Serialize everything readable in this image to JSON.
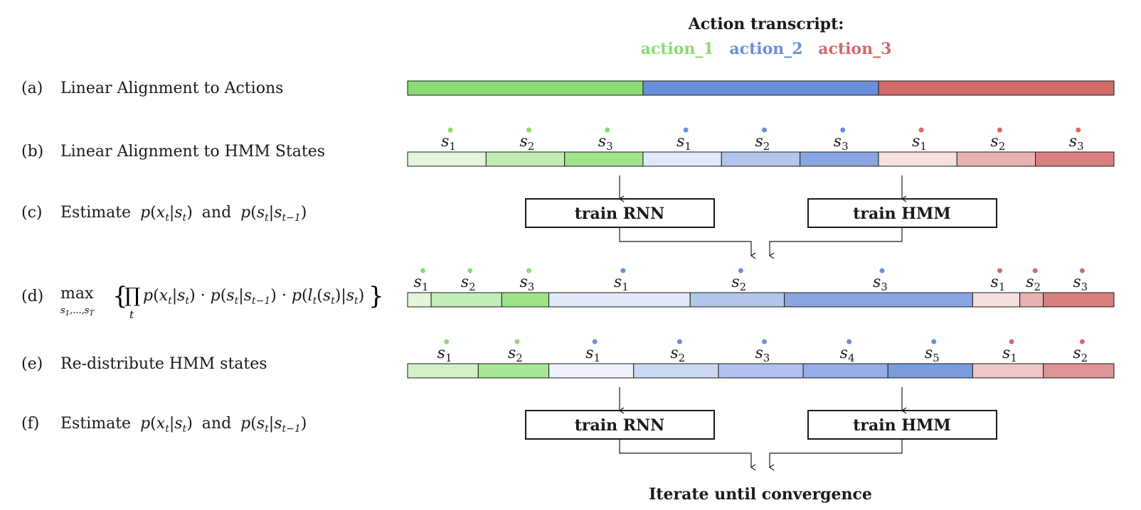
{
  "header": {
    "title": "Action transcript:",
    "actions": [
      {
        "label": "action_1",
        "color": "#8adc73"
      },
      {
        "label": "action_2",
        "color": "#6b8fdb"
      },
      {
        "label": "action_3",
        "color": "#d36a6a"
      }
    ]
  },
  "steps": [
    {
      "key": "(a)",
      "text": "Linear Alignment to Actions"
    },
    {
      "key": "(b)",
      "text": "Linear Alignment to HMM States"
    },
    {
      "key": "(c)",
      "text_prefix": "Estimate",
      "formula1": "p(xt|st)",
      "mid": "and",
      "formula2": "p(st|st−1)"
    },
    {
      "key": "(d)",
      "formula": "max s1,...,sT { ∏t p(xt|st) · p(st|st−1) · p(lt(st)|st) }"
    },
    {
      "key": "(e)",
      "text": "Re-distribute HMM states"
    },
    {
      "key": "(f)",
      "text_prefix": "Estimate",
      "formula1": "p(xt|st)",
      "mid": "and",
      "formula2": "p(st|st−1)"
    }
  ],
  "boxes": {
    "rnn": "train RNN",
    "hmm": "train HMM"
  },
  "footer": "Iterate until convergence",
  "rows": {
    "a": [
      {
        "action": 0,
        "color": "#8adc73",
        "frac": 0.3333
      },
      {
        "action": 1,
        "color": "#6b8fdb",
        "frac": 0.3333
      },
      {
        "action": 2,
        "color": "#d36a6a",
        "frac": 0.3334
      }
    ],
    "b": [
      {
        "state": "s",
        "sub": "1",
        "action": 0,
        "color": "#e3f6dd",
        "frac": 0.1111
      },
      {
        "state": "s",
        "sub": "2",
        "action": 0,
        "color": "#c2edb6",
        "frac": 0.1111
      },
      {
        "state": "s",
        "sub": "3",
        "action": 0,
        "color": "#9fe38a",
        "frac": 0.1111
      },
      {
        "state": "s",
        "sub": "1",
        "action": 1,
        "color": "#e2e8f8",
        "frac": 0.1111
      },
      {
        "state": "s",
        "sub": "2",
        "action": 1,
        "color": "#b4c5ec",
        "frac": 0.1111
      },
      {
        "state": "s",
        "sub": "3",
        "action": 1,
        "color": "#89a6e2",
        "frac": 0.1111
      },
      {
        "state": "s",
        "sub": "1",
        "action": 2,
        "color": "#f6dfdf",
        "frac": 0.1111
      },
      {
        "state": "s",
        "sub": "2",
        "action": 2,
        "color": "#e7b2b2",
        "frac": 0.1111
      },
      {
        "state": "s",
        "sub": "3",
        "action": 2,
        "color": "#d88080",
        "frac": 0.1112
      }
    ],
    "d": [
      {
        "state": "s",
        "sub": "1",
        "action": 0,
        "color": "#e3f6dd",
        "frac": 0.0333
      },
      {
        "state": "s",
        "sub": "2",
        "action": 0,
        "color": "#c2edb6",
        "frac": 0.1
      },
      {
        "state": "s",
        "sub": "3",
        "action": 0,
        "color": "#9fe38a",
        "frac": 0.0667
      },
      {
        "state": "s",
        "sub": "1",
        "action": 1,
        "color": "#e2e8f8",
        "frac": 0.2
      },
      {
        "state": "s",
        "sub": "2",
        "action": 1,
        "color": "#b4c5ec",
        "frac": 0.1333
      },
      {
        "state": "s",
        "sub": "3",
        "action": 1,
        "color": "#89a6e2",
        "frac": 0.2667
      },
      {
        "state": "s",
        "sub": "1",
        "action": 2,
        "color": "#f6dfdf",
        "frac": 0.0667
      },
      {
        "state": "s",
        "sub": "2",
        "action": 2,
        "color": "#e7b2b2",
        "frac": 0.0333
      },
      {
        "state": "s",
        "sub": "3",
        "action": 2,
        "color": "#d88080",
        "frac": 0.1
      }
    ],
    "e": [
      {
        "state": "s",
        "sub": "1",
        "action": 0,
        "color": "#d2f1c8",
        "frac": 0.1
      },
      {
        "state": "s",
        "sub": "2",
        "action": 0,
        "color": "#a8e596",
        "frac": 0.1
      },
      {
        "state": "s",
        "sub": "1",
        "action": 1,
        "color": "#edf1fb",
        "frac": 0.12
      },
      {
        "state": "s",
        "sub": "2",
        "action": 1,
        "color": "#ccd8f3",
        "frac": 0.12
      },
      {
        "state": "s",
        "sub": "3",
        "action": 1,
        "color": "#b0c2eb",
        "frac": 0.12
      },
      {
        "state": "s",
        "sub": "4",
        "action": 1,
        "color": "#94ade4",
        "frac": 0.12
      },
      {
        "state": "s",
        "sub": "5",
        "action": 1,
        "color": "#7a9bdd",
        "frac": 0.12
      },
      {
        "state": "s",
        "sub": "1",
        "action": 2,
        "color": "#efc6c6",
        "frac": 0.1
      },
      {
        "state": "s",
        "sub": "2",
        "action": 2,
        "color": "#dc9494",
        "frac": 0.1
      }
    ]
  }
}
